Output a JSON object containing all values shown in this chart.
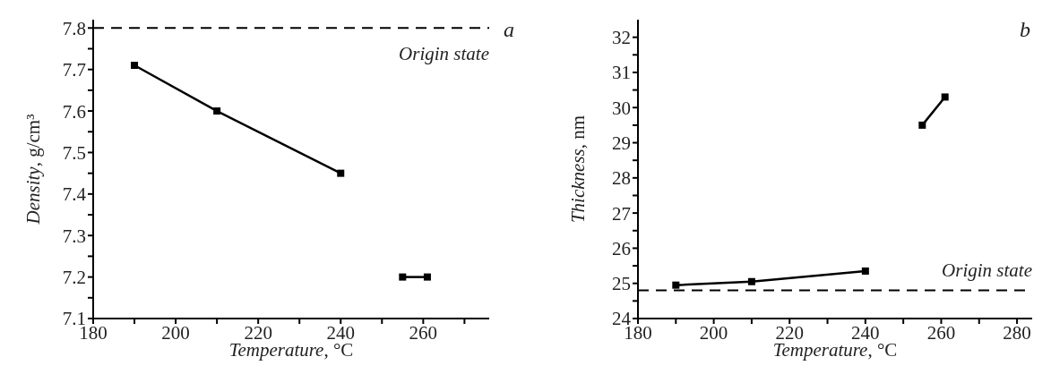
{
  "chart_data": [
    {
      "type": "line",
      "xlabel": "Temperature, °C",
      "ylabel": "Density, g/cm³",
      "marker": "square",
      "line_style": "solid",
      "xlim": [
        180,
        276
      ],
      "xticks": [
        180,
        {
          "value": 190,
          "label": null
        },
        200,
        {
          "value": 210,
          "label": null
        },
        220,
        {
          "value": 230,
          "label": null
        },
        240,
        {
          "value": 250,
          "label": null
        },
        260,
        {
          "value": 270,
          "label": null
        }
      ],
      "ylim": [
        7.1,
        7.82
      ],
      "yticks": [
        7.1,
        {
          "value": 7.15,
          "label": null
        },
        7.2,
        {
          "value": 7.25,
          "label": null
        },
        7.3,
        {
          "value": 7.35,
          "label": null
        },
        7.4,
        {
          "value": 7.45,
          "label": null
        },
        7.5,
        {
          "value": 7.55,
          "label": null
        },
        7.6,
        {
          "value": 7.65,
          "label": null
        },
        7.7,
        {
          "value": 7.75,
          "label": null
        },
        7.8
      ],
      "series": [
        {
          "color": "#000000",
          "x": [
            190,
            210,
            240
          ],
          "values": [
            7.71,
            7.6,
            7.45
          ]
        },
        {
          "color": "#000000",
          "x": [
            255,
            261
          ],
          "values": [
            7.2,
            7.2
          ]
        }
      ],
      "ref_lines": [
        {
          "axis": "y",
          "value": 7.8,
          "label": "Origin state",
          "line_style": "dashed",
          "color": "#000000"
        }
      ],
      "annotations": [
        "a"
      ]
    },
    {
      "type": "line",
      "xlabel": "Temperature, °C",
      "ylabel": "Thickness, nm",
      "marker": "square",
      "line_style": "solid",
      "xlim": [
        180,
        284
      ],
      "xticks": [
        180,
        {
          "value": 190,
          "label": null
        },
        200,
        {
          "value": 210,
          "label": null
        },
        220,
        {
          "value": 230,
          "label": null
        },
        240,
        {
          "value": 250,
          "label": null
        },
        260,
        {
          "value": 270,
          "label": null
        },
        280
      ],
      "ylim": [
        24,
        32.5
      ],
      "yticks": [
        24,
        {
          "value": 24.5,
          "label": null
        },
        25,
        {
          "value": 25.5,
          "label": null
        },
        26,
        {
          "value": 26.5,
          "label": null
        },
        27,
        {
          "value": 27.5,
          "label": null
        },
        28,
        {
          "value": 28.5,
          "label": null
        },
        29,
        {
          "value": 29.5,
          "label": null
        },
        30,
        {
          "value": 30.5,
          "label": null
        },
        31,
        {
          "value": 31.5,
          "label": null
        },
        32
      ],
      "series": [
        {
          "color": "#000000",
          "x": [
            190,
            210,
            240
          ],
          "values": [
            24.95,
            25.05,
            25.35
          ]
        },
        {
          "color": "#000000",
          "x": [
            255,
            261
          ],
          "values": [
            29.5,
            30.3
          ]
        }
      ],
      "ref_lines": [
        {
          "axis": "y",
          "value": 24.8,
          "label": "Origin state",
          "line_style": "dashed",
          "color": "#000000"
        }
      ],
      "annotations": [
        "b"
      ]
    }
  ]
}
